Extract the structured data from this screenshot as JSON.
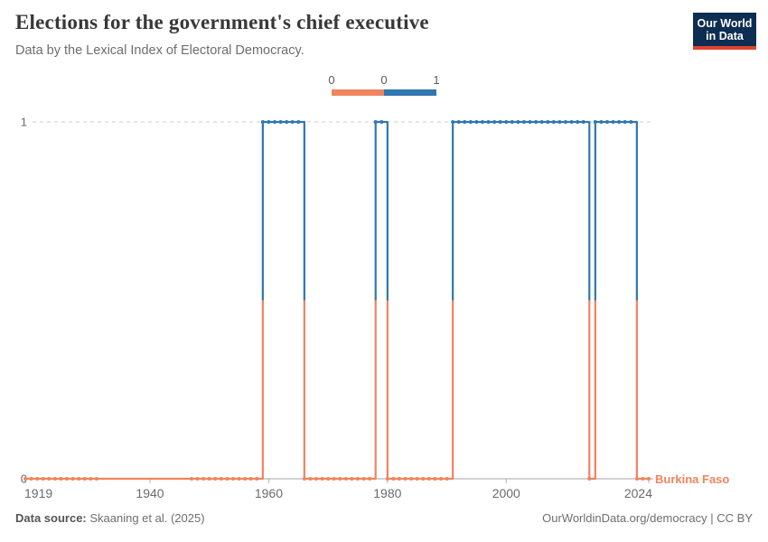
{
  "header": {
    "title": "Elections for the government's chief executive",
    "subtitle": "Data by the Lexical Index of Electoral Democracy.",
    "logo": {
      "line1": "Our World",
      "line2": "in Data"
    }
  },
  "legend": {
    "labels": [
      "0",
      "0",
      "1"
    ]
  },
  "chart_data": {
    "type": "line",
    "subtype": "step-binary",
    "title": "Elections for the government's chief executive",
    "xlabel": "",
    "ylabel": "",
    "x_range": [
      1919,
      2024
    ],
    "y_range": [
      0,
      1
    ],
    "x_ticks": [
      1919,
      1940,
      1960,
      1980,
      2000,
      2024
    ],
    "y_ticks": [
      0,
      1
    ],
    "grid": "dashed line at y=1, solid axis at y=0",
    "legend_position": "top-center",
    "colors": {
      "0": "#F0845E",
      "1": "#3077B2"
    },
    "series": [
      {
        "name": "Burkina Faso",
        "segments": [
          {
            "start_year": 1919,
            "end_year": 1958,
            "value": 0
          },
          {
            "start_year": 1959,
            "end_year": 1965,
            "value": 1
          },
          {
            "start_year": 1966,
            "end_year": 1977,
            "value": 0
          },
          {
            "start_year": 1978,
            "end_year": 1979,
            "value": 1
          },
          {
            "start_year": 1980,
            "end_year": 1990,
            "value": 0
          },
          {
            "start_year": 1991,
            "end_year": 2013,
            "value": 1
          },
          {
            "start_year": 2014,
            "end_year": 2014,
            "value": 0
          },
          {
            "start_year": 2015,
            "end_year": 2021,
            "value": 1
          },
          {
            "start_year": 2022,
            "end_year": 2024,
            "value": 0
          }
        ],
        "marker_gap_years": [
          1932,
          1946
        ]
      }
    ]
  },
  "footer": {
    "source_label": "Data source:",
    "source_value": " Skaaning et al. (2025)",
    "credit": "OurWorldinData.org/democracy | CC BY"
  }
}
